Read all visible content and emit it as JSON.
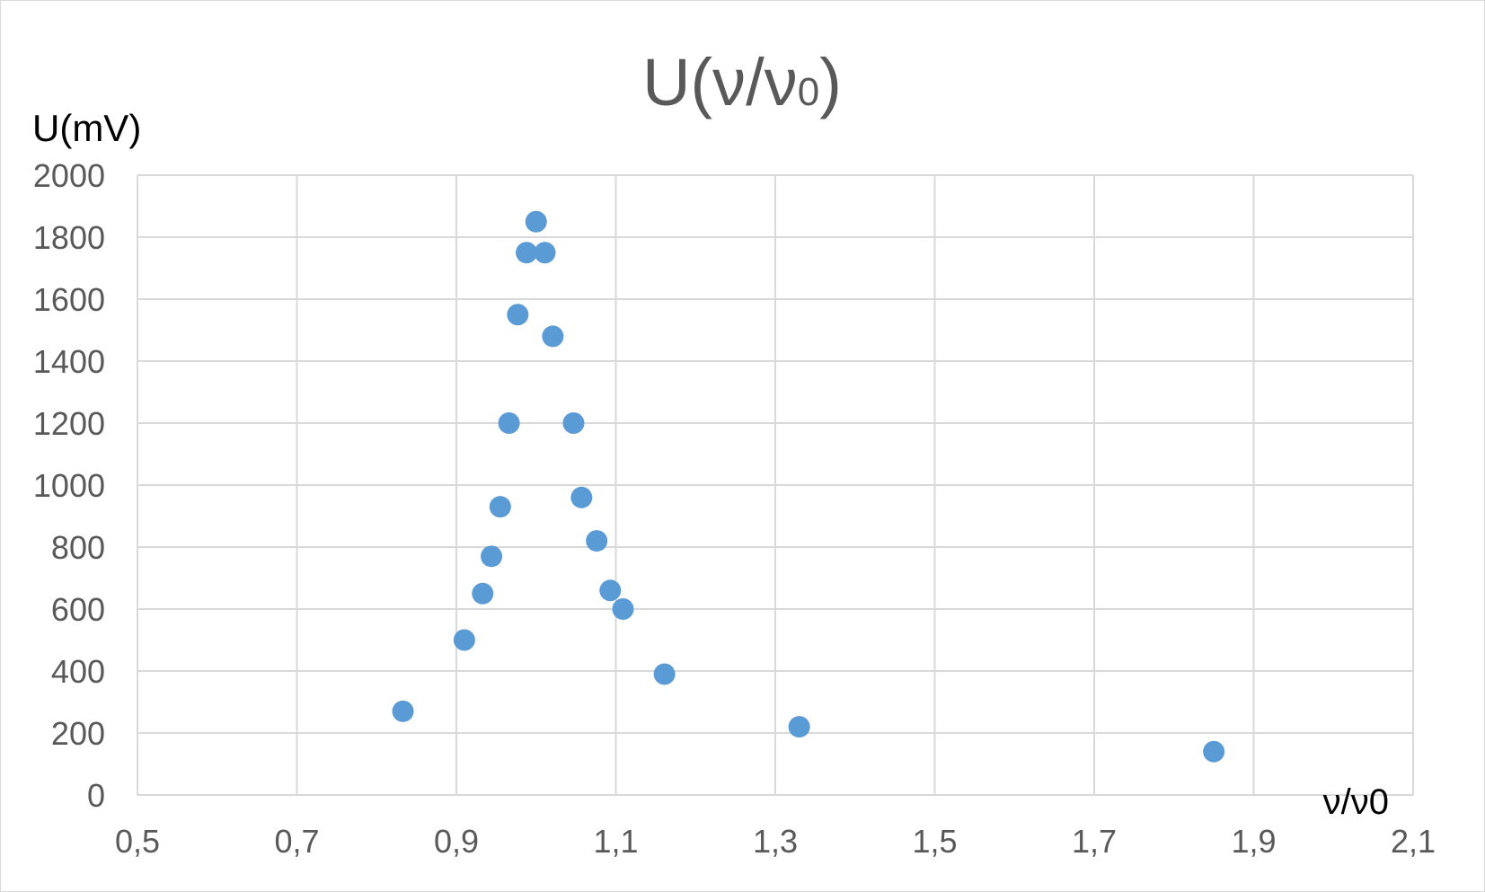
{
  "chart_data": {
    "type": "scatter",
    "title": "U(ν/ν₀)",
    "title_main": "U(ν/ν",
    "title_sub": "0",
    "title_close": ")",
    "xlabel": "ν/ν0",
    "ylabel": "U(mV)",
    "xlim": [
      0.5,
      2.1
    ],
    "ylim": [
      0,
      2000
    ],
    "x_ticks": [
      0.5,
      0.7,
      0.9,
      1.1,
      1.3,
      1.5,
      1.7,
      1.9,
      2.1
    ],
    "x_tick_labels": [
      "0,5",
      "0,7",
      "0,9",
      "1,1",
      "1,3",
      "1,5",
      "1,7",
      "1,9",
      "2,1"
    ],
    "y_ticks": [
      0,
      200,
      400,
      600,
      800,
      1000,
      1200,
      1400,
      1600,
      1800,
      2000
    ],
    "y_tick_labels": [
      "0",
      "200",
      "400",
      "600",
      "800",
      "1000",
      "1200",
      "1400",
      "1600",
      "1800",
      "2000"
    ],
    "grid": true,
    "marker_color": "#5b9bd5",
    "grid_color": "#d9d9d9",
    "series": [
      {
        "points": [
          {
            "x": 0.833,
            "y": 270
          },
          {
            "x": 0.91,
            "y": 500
          },
          {
            "x": 0.933,
            "y": 650
          },
          {
            "x": 0.944,
            "y": 770
          },
          {
            "x": 0.955,
            "y": 930
          },
          {
            "x": 0.966,
            "y": 1200
          },
          {
            "x": 0.977,
            "y": 1550
          },
          {
            "x": 0.988,
            "y": 1750
          },
          {
            "x": 1.0,
            "y": 1850
          },
          {
            "x": 1.011,
            "y": 1750
          },
          {
            "x": 1.021,
            "y": 1480
          },
          {
            "x": 1.047,
            "y": 1200
          },
          {
            "x": 1.057,
            "y": 960
          },
          {
            "x": 1.076,
            "y": 820
          },
          {
            "x": 1.093,
            "y": 660
          },
          {
            "x": 1.109,
            "y": 600
          },
          {
            "x": 1.161,
            "y": 390
          },
          {
            "x": 1.33,
            "y": 220
          },
          {
            "x": 1.85,
            "y": 140
          }
        ]
      }
    ]
  }
}
